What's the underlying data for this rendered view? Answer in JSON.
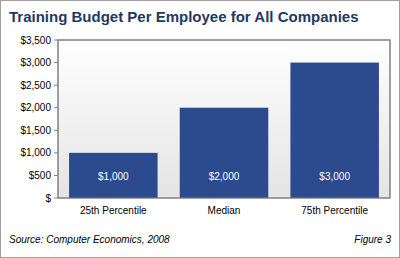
{
  "chart_data": {
    "type": "bar",
    "title": "Training Budget Per Employee for All Companies",
    "categories": [
      "25th Percentile",
      "Median",
      "75th Percentile"
    ],
    "values": [
      1000,
      2000,
      3000
    ],
    "value_labels": [
      "$1,000",
      "$2,000",
      "$3,000"
    ],
    "data_labels": true,
    "color": "#2c4b8e",
    "ylim": [
      0,
      3500
    ],
    "yticks": [
      {
        "value": 0,
        "label": "$"
      },
      {
        "value": 500,
        "label": "$500"
      },
      {
        "value": 1000,
        "label": "$1,000"
      },
      {
        "value": 1500,
        "label": "$1,500"
      },
      {
        "value": 2000,
        "label": "$2,000"
      },
      {
        "value": 2500,
        "label": "$2,500"
      },
      {
        "value": 3000,
        "label": "$3,000"
      },
      {
        "value": 3500,
        "label": "$3,500"
      }
    ],
    "grid": false,
    "source": "Source: Computer Economics, 2008",
    "figure": "Figure 3"
  }
}
